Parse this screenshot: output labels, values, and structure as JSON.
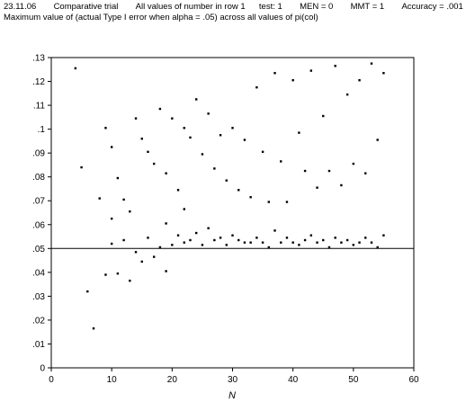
{
  "header": {
    "date": "23.11.06",
    "trial": "Comparative trial",
    "values": "All values of number in row 1",
    "test": "test: 1",
    "men": "MEN = 0",
    "mmt": "MMT = 1",
    "accuracy": "Accuracy = .001",
    "subtitle": "Maximum value of (actual Type I error when alpha = .05) across all values of pi(col)"
  },
  "chart_data": {
    "type": "scatter",
    "title": "Maximum value of (actual Type I error when alpha = .05) across all values of pi(col)",
    "xlabel": "N",
    "ylabel": "",
    "xlim": [
      0,
      60
    ],
    "ylim": [
      0,
      0.13
    ],
    "xticks": [
      "0",
      "10",
      "20",
      "30",
      "40",
      "50",
      "60"
    ],
    "yticks": [
      "0",
      ".01",
      ".02",
      ".03",
      ".04",
      ".05",
      ".06",
      ".07",
      ".08",
      ".09",
      ".1",
      ".11",
      ".12",
      ".13"
    ],
    "reference_line": 0.05,
    "grid": false,
    "series": [
      {
        "x": [
          4,
          5,
          6,
          7,
          8,
          9,
          9,
          10,
          10,
          10,
          11,
          11,
          12,
          12,
          13,
          13,
          14,
          14,
          15,
          15,
          16,
          16,
          17,
          17,
          18,
          18,
          19,
          19,
          19,
          20,
          20,
          21,
          21,
          22,
          22,
          22,
          23,
          23,
          24,
          24,
          25,
          25,
          26,
          26,
          27,
          27,
          28,
          28,
          29,
          29,
          30,
          30,
          31,
          31,
          32,
          32,
          33,
          33,
          34,
          34,
          35,
          35,
          36,
          36,
          37,
          37,
          38,
          38,
          39,
          39,
          40,
          40,
          41,
          41,
          42,
          42,
          43,
          43,
          44,
          44,
          45,
          45,
          46,
          46,
          47,
          47,
          48,
          48,
          49,
          49,
          50,
          50,
          51,
          51,
          52,
          52,
          53,
          53,
          54,
          54,
          55,
          55
        ],
        "y": [
          0.1255,
          0.084,
          0.032,
          0.0165,
          0.071,
          0.039,
          0.1005,
          0.0625,
          0.052,
          0.0925,
          0.0395,
          0.0795,
          0.0705,
          0.0535,
          0.0365,
          0.0655,
          0.1045,
          0.0485,
          0.0445,
          0.096,
          0.0905,
          0.0545,
          0.0465,
          0.0855,
          0.1085,
          0.0505,
          0.0405,
          0.0815,
          0.0605,
          0.1045,
          0.0515,
          0.0745,
          0.0555,
          0.1005,
          0.0665,
          0.0525,
          0.0965,
          0.0535,
          0.1125,
          0.0565,
          0.0895,
          0.0515,
          0.1065,
          0.0585,
          0.0835,
          0.0535,
          0.0975,
          0.0545,
          0.0785,
          0.0515,
          0.1005,
          0.0555,
          0.0745,
          0.0535,
          0.0955,
          0.0525,
          0.0715,
          0.0525,
          0.1175,
          0.0545,
          0.0905,
          0.0525,
          0.0695,
          0.0505,
          0.1235,
          0.0575,
          0.0865,
          0.0525,
          0.0695,
          0.0545,
          0.1205,
          0.0525,
          0.0985,
          0.0515,
          0.0825,
          0.0535,
          0.1245,
          0.0555,
          0.0755,
          0.0525,
          0.1055,
          0.0535,
          0.0825,
          0.0505,
          0.1265,
          0.0545,
          0.0765,
          0.0525,
          0.1145,
          0.0535,
          0.0855,
          0.0515,
          0.1205,
          0.0525,
          0.0815,
          0.0545,
          0.1275,
          0.0525,
          0.0955,
          0.0505,
          0.1235,
          0.0555
        ]
      }
    ]
  }
}
